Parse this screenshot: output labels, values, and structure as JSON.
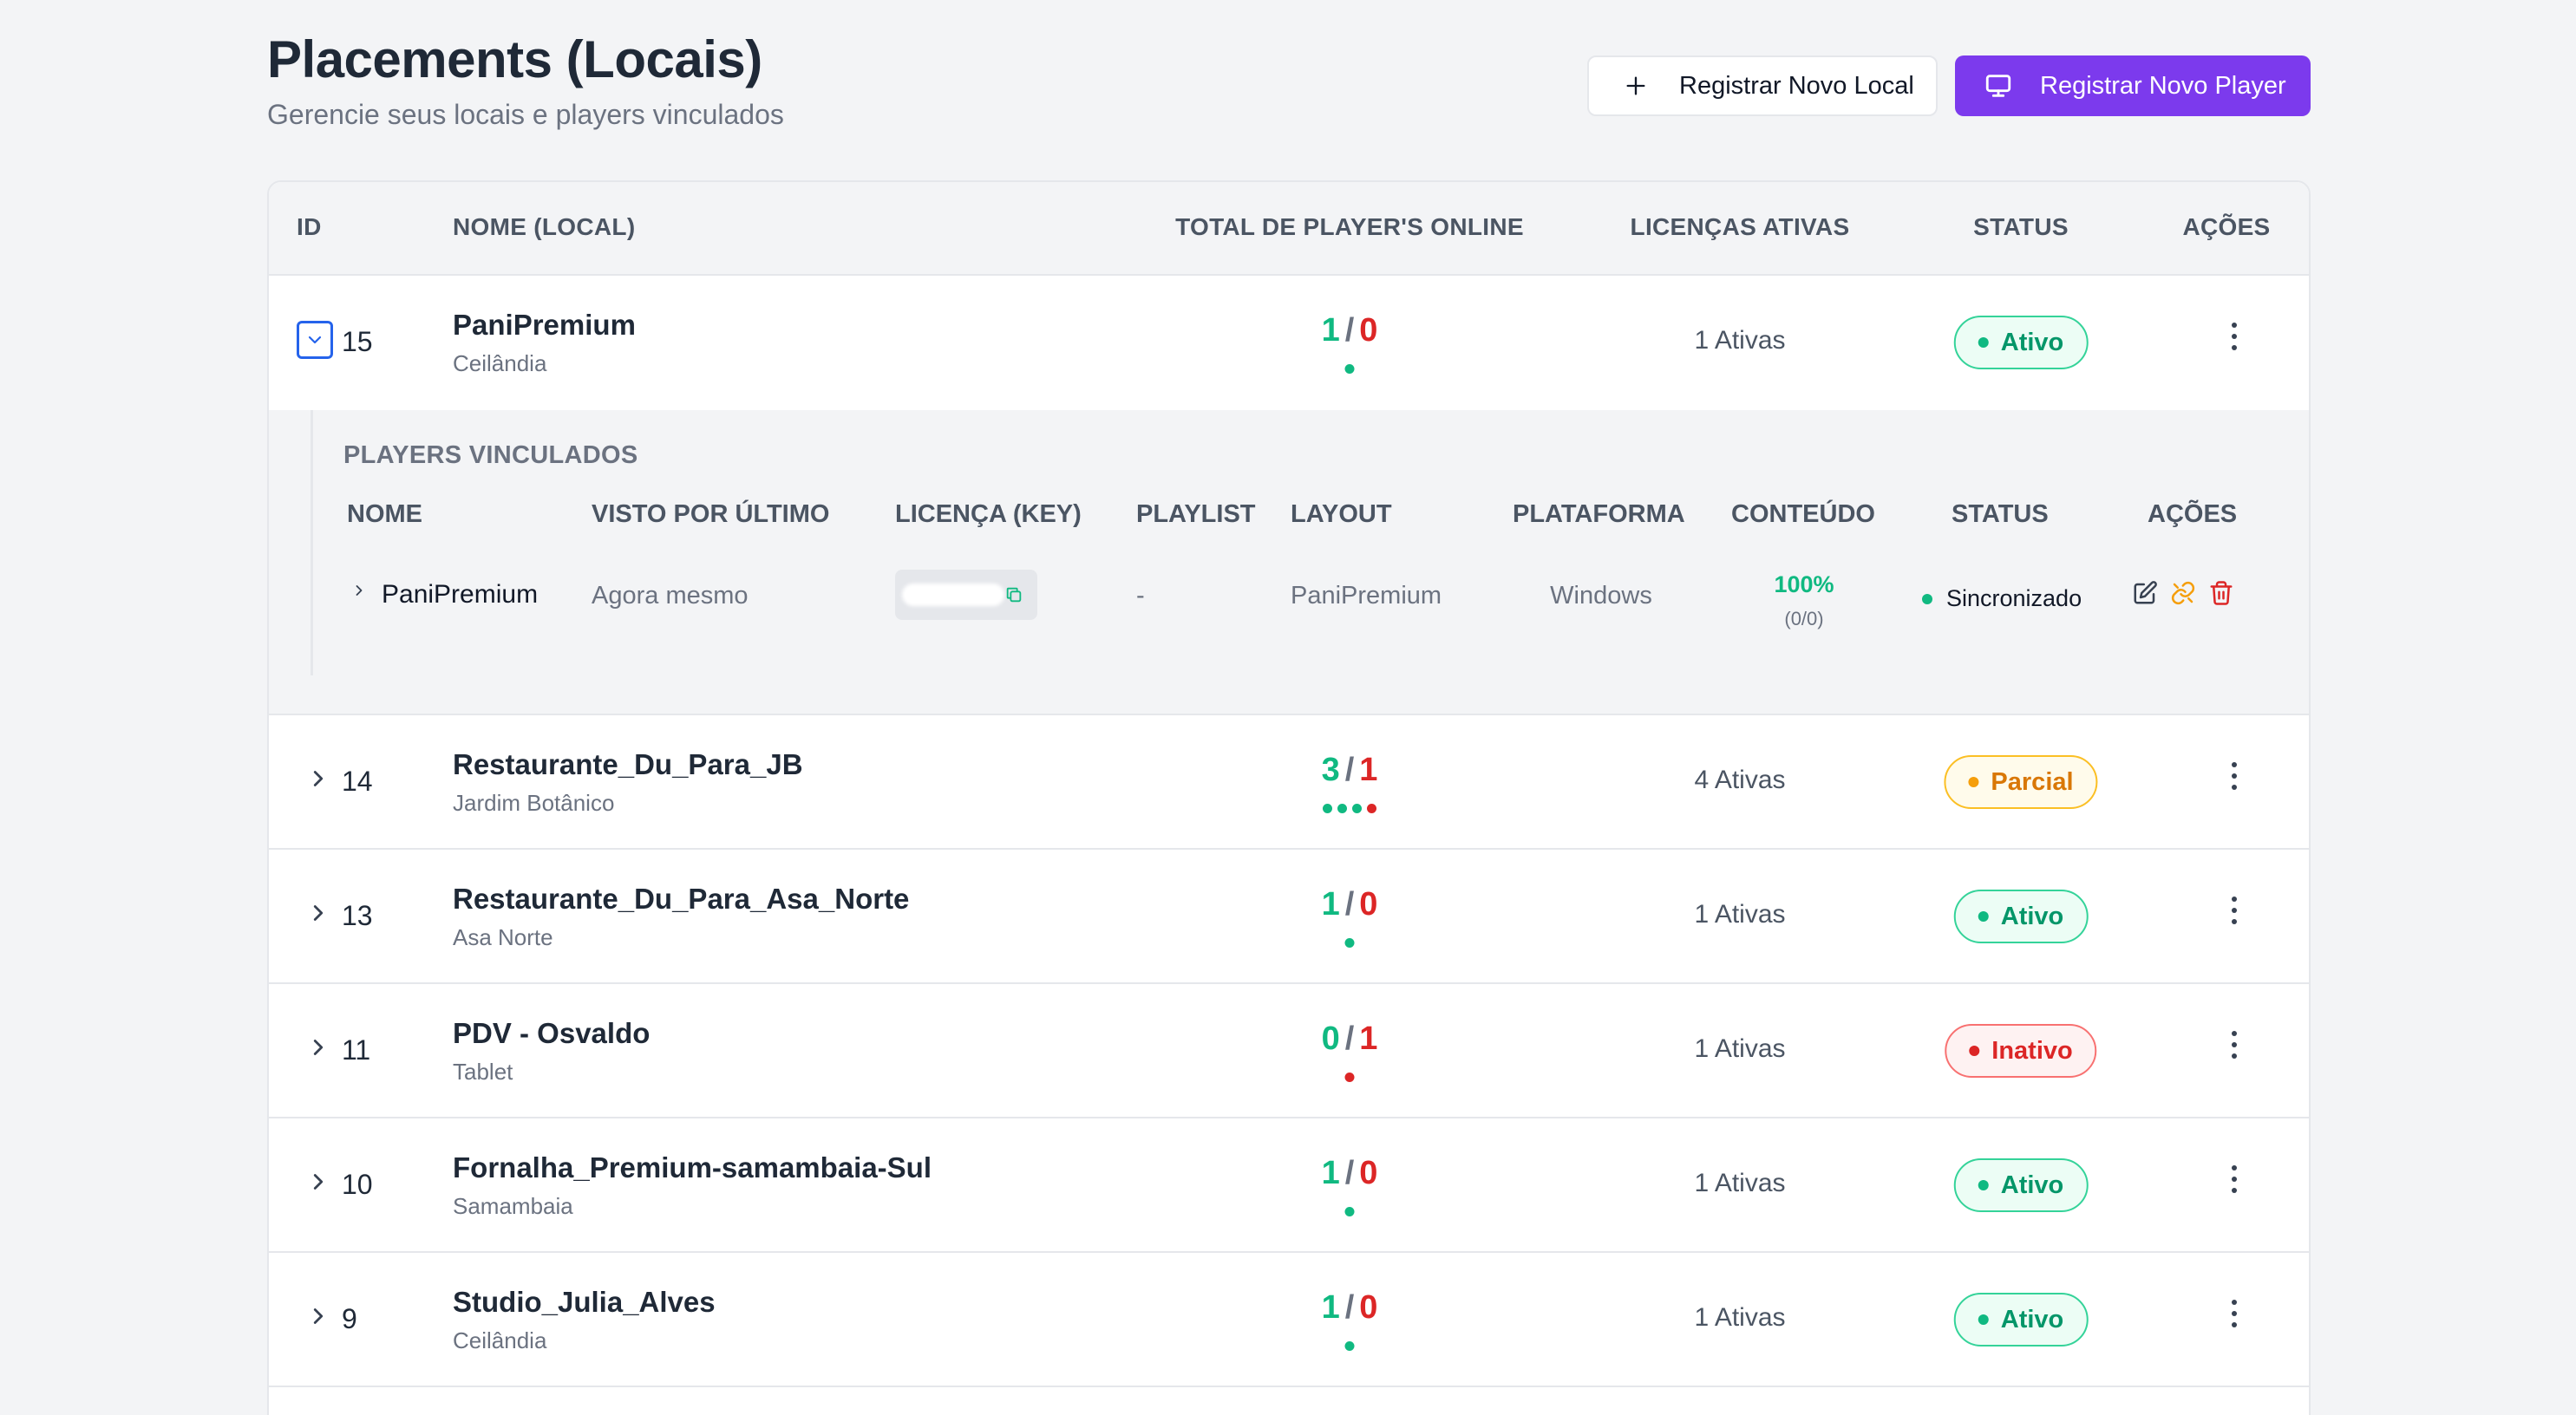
{
  "header": {
    "title": "Placements (Locais)",
    "subtitle": "Gerencie seus locais e players vinculados",
    "btn_new_local": "Registrar Novo Local",
    "btn_new_player": "Registrar Novo Player"
  },
  "colors": {
    "primary": "#7c3aed",
    "online": "#10b981",
    "offline": "#dc2626",
    "partial": "#f59e0b"
  },
  "table": {
    "headers": {
      "id": "ID",
      "name": "NOME (LOCAL)",
      "online": "TOTAL DE PLAYER'S ONLINE",
      "licenses": "LICENÇAS ATIVAS",
      "status": "STATUS",
      "actions": "AÇÕES"
    },
    "sep": "/",
    "rows": [
      {
        "id": "15",
        "name": "PaniPremium",
        "location": "Ceilândia",
        "online": "1",
        "offline": "0",
        "dots": [
          "online"
        ],
        "licenses": "1 Ativas",
        "status": "Ativo",
        "status_kind": "ativo",
        "expanded": true
      },
      {
        "id": "14",
        "name": "Restaurante_Du_Para_JB",
        "location": "Jardim Botânico",
        "online": "3",
        "offline": "1",
        "dots": [
          "online",
          "online",
          "online",
          "offline"
        ],
        "licenses": "4 Ativas",
        "status": "Parcial",
        "status_kind": "parcial",
        "expanded": false
      },
      {
        "id": "13",
        "name": "Restaurante_Du_Para_Asa_Norte",
        "location": "Asa Norte",
        "online": "1",
        "offline": "0",
        "dots": [
          "online"
        ],
        "licenses": "1 Ativas",
        "status": "Ativo",
        "status_kind": "ativo",
        "expanded": false
      },
      {
        "id": "11",
        "name": "PDV - Osvaldo",
        "location": "Tablet",
        "online": "0",
        "offline": "1",
        "dots": [
          "offline"
        ],
        "licenses": "1 Ativas",
        "status": "Inativo",
        "status_kind": "inativo",
        "expanded": false
      },
      {
        "id": "10",
        "name": "Fornalha_Premium-samambaia-Sul",
        "location": "Samambaia",
        "online": "1",
        "offline": "0",
        "dots": [
          "online"
        ],
        "licenses": "1 Ativas",
        "status": "Ativo",
        "status_kind": "ativo",
        "expanded": false
      },
      {
        "id": "9",
        "name": "Studio_Julia_Alves",
        "location": "Ceilândia",
        "online": "1",
        "offline": "0",
        "dots": [
          "online"
        ],
        "licenses": "1 Ativas",
        "status": "Ativo",
        "status_kind": "ativo",
        "expanded": false
      }
    ]
  },
  "players": {
    "title": "PLAYERS VINCULADOS",
    "headers": {
      "name": "NOME",
      "last_seen": "VISTO POR ÚLTIMO",
      "license": "LICENÇA (KEY)",
      "playlist": "PLAYLIST",
      "layout": "LAYOUT",
      "platform": "PLATAFORMA",
      "content": "CONTEÚDO",
      "status": "STATUS",
      "actions": "AÇÕES"
    },
    "row": {
      "name": "PaniPremium",
      "last_seen": "Agora mesmo",
      "playlist": "-",
      "layout": "PaniPremium",
      "platform": "Windows",
      "content_pct": "100%",
      "content_sub": "(0/0)",
      "status": "Sincronizado"
    }
  }
}
